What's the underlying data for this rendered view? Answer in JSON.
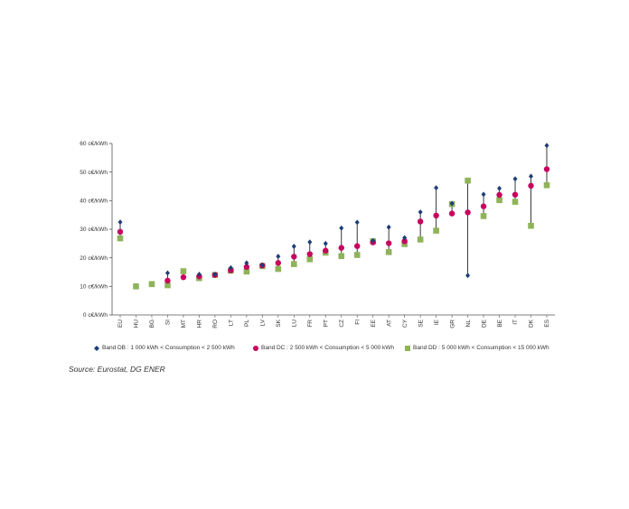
{
  "chart_data": {
    "type": "scatter",
    "categories": [
      "EU",
      "HU",
      "BG",
      "SI",
      "MT",
      "HR",
      "RO",
      "LT",
      "PL",
      "LV",
      "SK",
      "LU",
      "FR",
      "PT",
      "CZ",
      "FI",
      "EE",
      "AT",
      "CY",
      "SE",
      "IE",
      "GR",
      "NL",
      "DE",
      "BE",
      "IT",
      "DK",
      "ES"
    ],
    "ylim": [
      0,
      60
    ],
    "yticks": [
      0,
      10,
      20,
      30,
      40,
      50,
      60
    ],
    "ytick_labels": [
      "0 c€/kWh",
      "10 c€/kWh",
      "20 c€/kWh",
      "30 c€/kWh",
      "40 c€/kWh",
      "50 c€/kWh",
      "60 c€/kWh"
    ],
    "series": [
      {
        "name": "Band DB : 1 000 kWh < Consumption < 2 500 kWh",
        "color": "#1f3f75",
        "marker": "diamond",
        "values": [
          32.5,
          null,
          null,
          14.7,
          null,
          14.2,
          14.2,
          16.5,
          18.2,
          17.5,
          20.5,
          24.0,
          25.5,
          25.0,
          30.4,
          32.4,
          26.0,
          30.7,
          27.0,
          36.0,
          44.5,
          39.0,
          13.8,
          42.2,
          44.3,
          47.6,
          48.5,
          59.3
        ]
      },
      {
        "name": "Band DC : 2 500 kWh < Consumption < 5 000 kWh",
        "color": "#c8005e",
        "marker": "circle",
        "values": [
          29.1,
          null,
          null,
          12.0,
          13.2,
          13.5,
          14.0,
          15.6,
          16.8,
          17.3,
          18.2,
          20.4,
          21.3,
          22.5,
          23.5,
          24.1,
          25.4,
          25.1,
          25.8,
          32.7,
          34.8,
          35.5,
          35.9,
          38.0,
          42.0,
          42.1,
          45.2,
          51.0
        ]
      },
      {
        "name": "Band DD : 5 000 kWh < Consumption < 15 000 kWh",
        "color": "#8fb35a",
        "marker": "square",
        "values": [
          26.8,
          10.0,
          10.8,
          10.4,
          15.3,
          12.9,
          14.0,
          15.5,
          15.2,
          17.1,
          16.1,
          17.8,
          19.5,
          21.8,
          20.6,
          21.0,
          25.8,
          22.0,
          24.8,
          26.4,
          29.5,
          38.8,
          47.0,
          34.6,
          40.2,
          39.6,
          31.2,
          45.4
        ]
      }
    ]
  },
  "source": "Source: Eurostat, DG ENER"
}
